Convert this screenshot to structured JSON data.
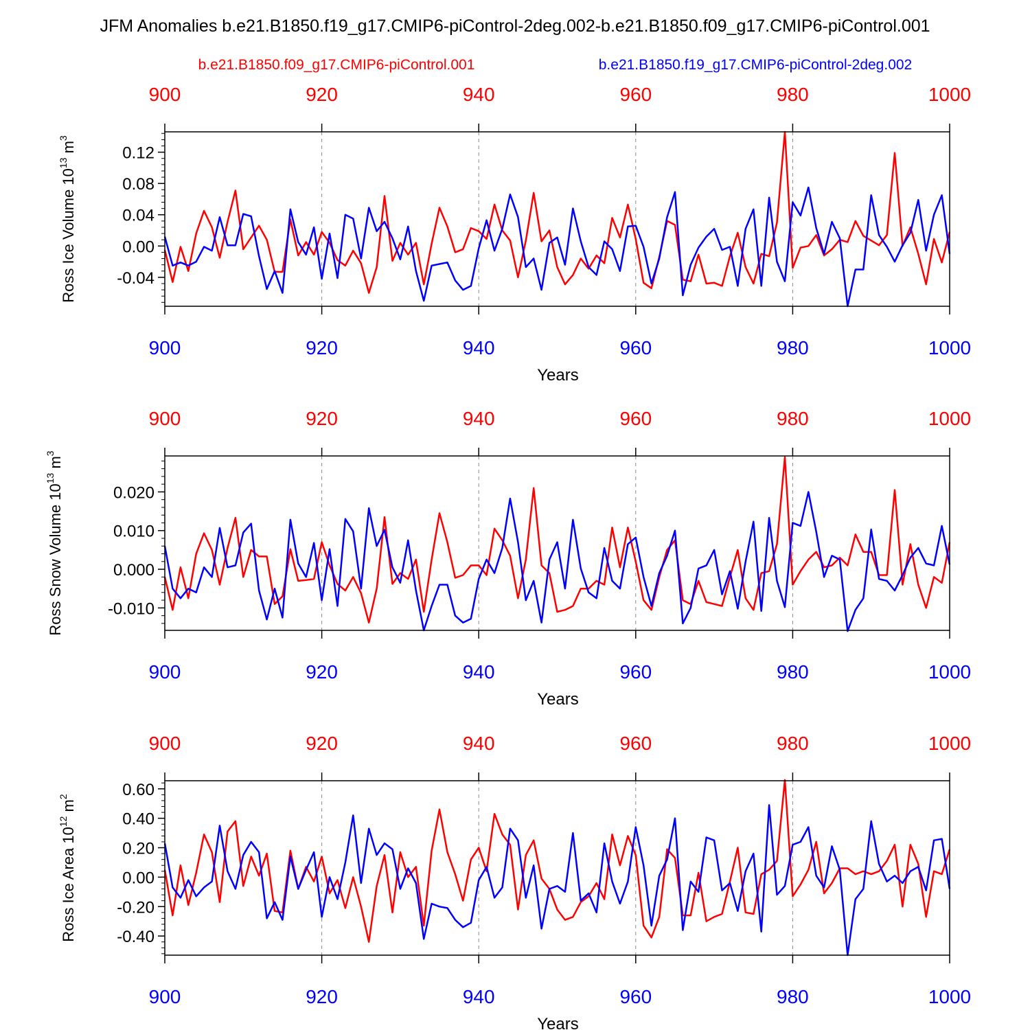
{
  "title": "JFM Anomalies b.e21.B1850.f19_g17.CMIP6-piControl-2deg.002-b.e21.B1850.f09_g17.CMIP6-piControl.001",
  "legend": [
    {
      "label": "b.e21.B1850.f09_g17.CMIP6-piControl.001",
      "color": "#ff0000"
    },
    {
      "label": "b.e21.B1850.f19_g17.CMIP6-piControl-2deg.002",
      "color": "#0000ff"
    }
  ],
  "chart_data": [
    {
      "type": "line",
      "title": "",
      "ylabel": "Ross Ice Volume 10",
      "ylabel_exp": "13",
      "ylabel_unit": "m",
      "ylabel_unit_exp": "3",
      "xlabel": "Years",
      "xlim": [
        900,
        1000
      ],
      "ylim": [
        -0.077,
        0.146
      ],
      "x_ticks": [
        900,
        920,
        940,
        960,
        980,
        1000
      ],
      "y_ticks": [
        -0.04,
        0.0,
        0.04,
        0.08,
        0.12
      ],
      "y_tick_labels": [
        "-0.04",
        "0.00",
        "0.04",
        "0.08",
        "0.12"
      ],
      "y_minor_step": 0.008,
      "x_start": 900,
      "series": [
        {
          "name": "b.e21.B1850.f09_g17.CMIP6-piControl.001",
          "color": "#ff0000",
          "values": [
            -0.005,
            -0.046,
            -0.001,
            -0.032,
            0.016,
            0.045,
            0.024,
            -0.015,
            0.031,
            0.071,
            -0.004,
            0.011,
            0.026,
            0.008,
            -0.033,
            -0.033,
            0.034,
            -0.012,
            0.005,
            -0.011,
            0.018,
            0.004,
            -0.018,
            -0.025,
            -0.006,
            -0.022,
            -0.06,
            -0.027,
            0.064,
            -0.019,
            0.004,
            -0.011,
            0.004,
            -0.049,
            0.003,
            0.049,
            0.025,
            -0.008,
            -0.004,
            0.023,
            0.019,
            0.009,
            0.053,
            0.02,
            0.007,
            -0.04,
            0.007,
            0.068,
            0.006,
            0.02,
            -0.027,
            -0.049,
            -0.037,
            -0.016,
            -0.029,
            -0.012,
            -0.022,
            0.036,
            0.011,
            0.053,
            0.009,
            -0.047,
            -0.054,
            -0.014,
            0.032,
            0.027,
            -0.043,
            -0.045,
            -0.011,
            -0.048,
            -0.047,
            -0.051,
            -0.013,
            0.017,
            -0.027,
            -0.048,
            -0.01,
            -0.013,
            0.03,
            0.146,
            -0.028,
            -0.002,
            0.0,
            0.014,
            -0.012,
            -0.004,
            0.008,
            0.005,
            0.032,
            0.013,
            0.007,
            0.001,
            0.014,
            0.119,
            0.0,
            0.024,
            -0.01,
            -0.049,
            0.009,
            -0.021,
            0.018
          ]
        },
        {
          "name": "b.e21.B1850.f19_g17.CMIP6-piControl-2deg.002",
          "color": "#0000ff",
          "values": [
            0.012,
            -0.025,
            -0.021,
            -0.025,
            -0.02,
            -0.001,
            -0.006,
            0.037,
            0.001,
            0.001,
            0.041,
            0.038,
            -0.013,
            -0.055,
            -0.032,
            -0.06,
            0.047,
            0.005,
            -0.011,
            0.024,
            -0.042,
            0.016,
            -0.041,
            0.04,
            0.035,
            -0.016,
            0.049,
            0.019,
            0.031,
            0.01,
            -0.017,
            0.025,
            -0.032,
            -0.07,
            -0.025,
            -0.023,
            -0.021,
            -0.044,
            -0.056,
            -0.051,
            -0.003,
            0.033,
            -0.006,
            0.022,
            0.066,
            0.037,
            -0.027,
            -0.016,
            -0.056,
            0.004,
            0.011,
            -0.024,
            0.048,
            0.006,
            -0.027,
            -0.037,
            0.006,
            -0.004,
            -0.032,
            0.025,
            0.026,
            -0.001,
            -0.048,
            -0.016,
            0.037,
            0.069,
            -0.063,
            -0.024,
            -0.002,
            0.012,
            0.022,
            -0.005,
            -0.001,
            -0.051,
            0.022,
            0.047,
            -0.051,
            0.062,
            -0.02,
            -0.045,
            0.056,
            0.039,
            0.075,
            0.023,
            -0.01,
            0.031,
            0.01,
            -0.077,
            -0.03,
            -0.03,
            0.065,
            0.014,
            -0.001,
            -0.02,
            0.001,
            0.017,
            0.059,
            -0.006,
            0.04,
            0.065,
            -0.01
          ]
        }
      ]
    },
    {
      "type": "line",
      "title": "",
      "ylabel": "Ross Snow Volume 10",
      "ylabel_exp": "13",
      "ylabel_unit": "m",
      "ylabel_unit_exp": "3",
      "xlabel": "Years",
      "xlim": [
        900,
        1000
      ],
      "ylim": [
        -0.0158,
        0.0293
      ],
      "x_ticks": [
        900,
        920,
        940,
        960,
        980,
        1000
      ],
      "y_ticks": [
        -0.01,
        0.0,
        0.01,
        0.02
      ],
      "y_tick_labels": [
        "-0.010",
        "0.000",
        "0.010",
        "0.020"
      ],
      "y_minor_step": 0.002,
      "x_start": 900,
      "series": [
        {
          "name": "b.e21.B1850.f09_g17.CMIP6-piControl.001",
          "color": "#ff0000",
          "values": [
            -0.002,
            -0.0105,
            0.0005,
            -0.0075,
            0.004,
            0.0093,
            0.005,
            -0.004,
            0.0055,
            0.0133,
            -0.002,
            0.005,
            0.0033,
            0.0033,
            -0.009,
            -0.007,
            0.0052,
            -0.003,
            -0.0028,
            -0.0025,
            0.007,
            0.001,
            -0.0038,
            -0.0055,
            -0.002,
            -0.0062,
            -0.0138,
            -0.005,
            0.0135,
            -0.0038,
            -0.001,
            -0.0025,
            0.0025,
            -0.011,
            0.0025,
            0.0145,
            0.007,
            -0.0022,
            -0.0015,
            0.001,
            0.001,
            -0.0015,
            0.0105,
            0.0075,
            0.0035,
            -0.0075,
            0.0025,
            0.021,
            0.001,
            -0.001,
            -0.011,
            -0.0105,
            -0.0095,
            -0.005,
            -0.005,
            -0.003,
            -0.004,
            0.0108,
            0.0005,
            0.0108,
            0.002,
            -0.008,
            -0.0105,
            -0.002,
            0.005,
            0.0075,
            -0.008,
            -0.009,
            -0.003,
            -0.0085,
            -0.009,
            -0.0095,
            -0.002,
            0.005,
            -0.0075,
            -0.0105,
            -0.001,
            -0.0005,
            0.0065,
            0.029,
            -0.004,
            -0.0005,
            0.0025,
            0.0045,
            0.0005,
            0.001,
            0.003,
            0.001,
            0.009,
            0.0045,
            0.0045,
            -0.0015,
            -0.0015,
            0.0205,
            -0.004,
            0.0065,
            -0.004,
            -0.01,
            -0.002,
            -0.0035,
            0.007
          ]
        },
        {
          "name": "b.e21.B1850.f19_g17.CMIP6-piControl-2deg.002",
          "color": "#0000ff",
          "values": [
            0.006,
            -0.005,
            -0.0075,
            -0.005,
            -0.006,
            0.0005,
            -0.002,
            0.0107,
            0.0005,
            0.001,
            0.0095,
            0.0118,
            -0.0055,
            -0.013,
            -0.005,
            -0.0125,
            0.0128,
            0.0015,
            -0.002,
            0.0068,
            -0.008,
            0.0052,
            -0.0095,
            0.013,
            0.0098,
            -0.005,
            0.0158,
            0.006,
            0.0102,
            0.0005,
            -0.0035,
            0.0075,
            -0.0055,
            -0.0158,
            -0.0095,
            -0.004,
            -0.004,
            -0.012,
            -0.0138,
            -0.0128,
            -0.0025,
            0.0025,
            -0.001,
            0.0055,
            0.0183,
            0.007,
            -0.008,
            -0.003,
            -0.0138,
            0.0025,
            0.007,
            -0.005,
            0.0128,
            0.0002,
            -0.006,
            -0.0075,
            0.0055,
            -0.003,
            -0.005,
            0.0065,
            0.0082,
            -0.002,
            -0.0095,
            -0.001,
            0.0035,
            0.01,
            -0.014,
            -0.01,
            0.0002,
            0.001,
            0.005,
            -0.0065,
            -0.0005,
            -0.0102,
            0.002,
            0.0123,
            -0.0108,
            0.0133,
            -0.003,
            -0.0098,
            0.012,
            0.0112,
            0.02,
            0.0097,
            -0.002,
            0.0035,
            0.0025,
            -0.016,
            -0.0105,
            -0.0075,
            0.0103,
            -0.0025,
            -0.003,
            -0.0055,
            -0.0015,
            0.003,
            0.0055,
            0.0015,
            0.001,
            0.0112,
            0.0012
          ]
        }
      ]
    },
    {
      "type": "line",
      "title": "",
      "ylabel": "Ross Ice Area 10",
      "ylabel_exp": "12",
      "ylabel_unit": "m",
      "ylabel_unit_exp": "2",
      "xlabel": "Years",
      "xlim": [
        900,
        1000
      ],
      "ylim": [
        -0.53,
        0.655
      ],
      "x_ticks": [
        900,
        920,
        940,
        960,
        980,
        1000
      ],
      "y_ticks": [
        -0.4,
        -0.2,
        0.0,
        0.2,
        0.4,
        0.6
      ],
      "y_tick_labels": [
        "-0.40",
        "-0.20",
        "0.00",
        "0.20",
        "0.40",
        "0.60"
      ],
      "y_minor_step": 0.04,
      "x_start": 900,
      "series": [
        {
          "name": "b.e21.B1850.f09_g17.CMIP6-piControl.001",
          "color": "#ff0000",
          "values": [
            0.05,
            -0.26,
            0.08,
            -0.19,
            0.03,
            0.29,
            0.17,
            -0.17,
            0.31,
            0.38,
            -0.06,
            0.14,
            0.01,
            0.16,
            -0.23,
            -0.24,
            0.18,
            -0.08,
            0.07,
            -0.03,
            0.14,
            -0.11,
            -0.02,
            -0.21,
            0.0,
            -0.2,
            -0.44,
            -0.06,
            0.15,
            -0.24,
            0.17,
            0.0,
            0.07,
            -0.33,
            0.18,
            0.46,
            0.17,
            0.02,
            -0.16,
            0.12,
            0.2,
            0.04,
            0.43,
            0.29,
            0.22,
            -0.22,
            0.15,
            0.25,
            -0.01,
            -0.08,
            -0.22,
            -0.29,
            -0.27,
            -0.17,
            -0.13,
            -0.04,
            -0.15,
            0.29,
            0.08,
            0.28,
            0.15,
            -0.33,
            -0.41,
            -0.27,
            0.19,
            0.13,
            -0.26,
            -0.26,
            0.03,
            -0.3,
            -0.27,
            -0.25,
            -0.03,
            0.2,
            -0.24,
            -0.25,
            0.02,
            0.05,
            0.11,
            0.66,
            -0.13,
            -0.05,
            0.05,
            0.24,
            -0.11,
            -0.04,
            0.06,
            0.06,
            0.02,
            0.04,
            0.02,
            0.04,
            0.11,
            0.22,
            -0.2,
            0.22,
            0.09,
            -0.27,
            0.04,
            0.02,
            0.19
          ]
        },
        {
          "name": "b.e21.B1850.f19_g17.CMIP6-piControl-2deg.002",
          "color": "#0000ff",
          "values": [
            0.23,
            -0.07,
            -0.14,
            -0.02,
            -0.13,
            -0.07,
            -0.03,
            0.35,
            0.04,
            -0.08,
            0.15,
            0.24,
            0.17,
            -0.28,
            -0.17,
            -0.29,
            0.14,
            -0.08,
            0.05,
            0.17,
            -0.27,
            0.0,
            -0.15,
            0.1,
            0.42,
            -0.04,
            0.33,
            0.15,
            0.23,
            0.19,
            -0.08,
            0.06,
            -0.04,
            -0.42,
            -0.18,
            -0.2,
            -0.21,
            -0.29,
            -0.34,
            -0.31,
            -0.02,
            0.07,
            -0.14,
            -0.07,
            0.33,
            0.25,
            -0.14,
            0.08,
            -0.35,
            -0.08,
            -0.06,
            -0.1,
            0.3,
            -0.16,
            -0.11,
            -0.24,
            0.23,
            -0.03,
            -0.18,
            -0.03,
            0.34,
            0.08,
            -0.33,
            0.01,
            0.12,
            0.4,
            -0.36,
            -0.03,
            -0.1,
            0.27,
            0.25,
            -0.09,
            -0.04,
            -0.23,
            0.04,
            0.16,
            -0.37,
            0.49,
            -0.12,
            -0.06,
            0.22,
            0.24,
            0.34,
            0.01,
            -0.07,
            0.21,
            0.05,
            -0.53,
            -0.15,
            -0.08,
            0.38,
            0.09,
            -0.03,
            0.01,
            -0.04,
            0.04,
            0.07,
            -0.09,
            0.25,
            0.26,
            -0.08
          ]
        }
      ]
    }
  ]
}
